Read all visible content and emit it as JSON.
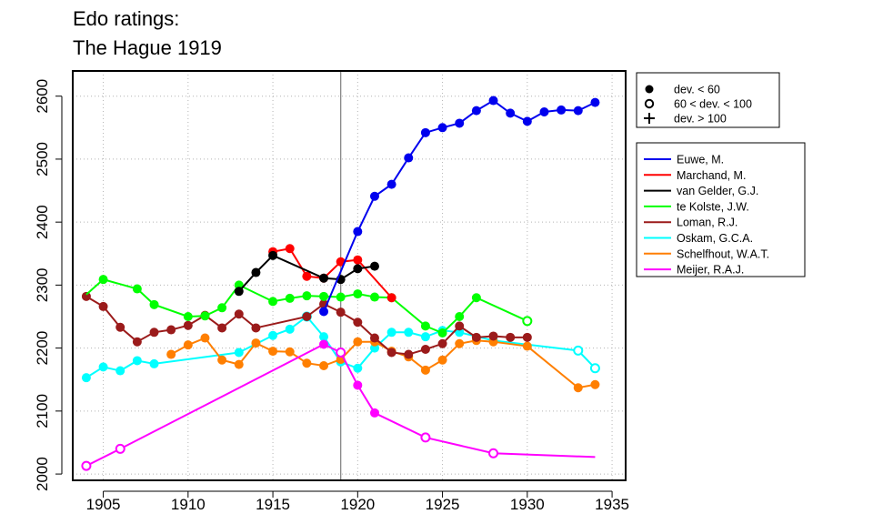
{
  "title": {
    "line1": "Edo ratings:",
    "line2": "The Hague 1919"
  },
  "chart_data": {
    "type": "line",
    "title": "Edo ratings: The Hague 1919",
    "xlabel": "",
    "ylabel": "",
    "xlim": [
      1903.2,
      1935.8
    ],
    "ylim": [
      1990,
      2640
    ],
    "xticks": [
      1905,
      1910,
      1915,
      1920,
      1925,
      1930,
      1935
    ],
    "yticks": [
      2000,
      2100,
      2200,
      2300,
      2400,
      2500,
      2600
    ],
    "grid": true,
    "reference_line_x": 1919,
    "marker_legend": [
      {
        "marker": "filled-circle",
        "label": "dev. < 60"
      },
      {
        "marker": "open-circle",
        "label": "60 < dev. < 100"
      },
      {
        "marker": "plus",
        "label": "dev. > 100"
      }
    ],
    "legend_position": "right",
    "series": [
      {
        "name": "Oskam, G.C.A.",
        "color": "#00ffff",
        "points": [
          [
            1904,
            2153,
            "f"
          ],
          [
            1905,
            2170,
            "f"
          ],
          [
            1906,
            2164,
            "f"
          ],
          [
            1907,
            2180,
            "f"
          ],
          [
            1908,
            2175,
            "f"
          ],
          [
            1913,
            2193,
            "f"
          ],
          [
            1915,
            2220,
            "f"
          ],
          [
            1916,
            2230,
            "f"
          ],
          [
            1917,
            2250,
            "o"
          ],
          [
            1918,
            2218,
            "f"
          ],
          [
            1919,
            2178,
            "f"
          ],
          [
            1920,
            2168,
            "f"
          ],
          [
            1921,
            2200,
            "f"
          ],
          [
            1922,
            2225,
            "f"
          ],
          [
            1923,
            2225,
            "f"
          ],
          [
            1924,
            2218,
            "f"
          ],
          [
            1925,
            2228,
            "f"
          ],
          [
            1926,
            2225,
            "f"
          ],
          [
            1928,
            2212,
            "f"
          ],
          [
            1933,
            2196,
            "o"
          ],
          [
            1934,
            2168,
            "o"
          ]
        ]
      },
      {
        "name": "Schelfhout, W.A.T.",
        "color": "#ff7f00",
        "points": [
          [
            1909,
            2190,
            "f"
          ],
          [
            1910,
            2205,
            "f"
          ],
          [
            1911,
            2216,
            "f"
          ],
          [
            1912,
            2181,
            "f"
          ],
          [
            1913,
            2174,
            "f"
          ],
          [
            1914,
            2208,
            "f"
          ],
          [
            1915,
            2195,
            "f"
          ],
          [
            1916,
            2194,
            "f"
          ],
          [
            1917,
            2176,
            "f"
          ],
          [
            1918,
            2172,
            "f"
          ],
          [
            1919,
            2182,
            "f"
          ],
          [
            1920,
            2210,
            "f"
          ],
          [
            1921,
            2210,
            "f"
          ],
          [
            1922,
            2195,
            "f"
          ],
          [
            1923,
            2186,
            "f"
          ],
          [
            1924,
            2165,
            "f"
          ],
          [
            1925,
            2181,
            "f"
          ],
          [
            1926,
            2207,
            "f"
          ],
          [
            1927,
            2212,
            "f"
          ],
          [
            1928,
            2210,
            "f"
          ],
          [
            1930,
            2203,
            "f"
          ],
          [
            1933,
            2137,
            "f"
          ],
          [
            1934,
            2142,
            "f"
          ]
        ]
      },
      {
        "name": "Loman, R.J.",
        "color": "#9b1b1b",
        "points": [
          [
            1904,
            2282,
            "f"
          ],
          [
            1905,
            2266,
            "f"
          ],
          [
            1906,
            2233,
            "f"
          ],
          [
            1907,
            2210,
            "f"
          ],
          [
            1908,
            2225,
            "f"
          ],
          [
            1909,
            2229,
            "f"
          ],
          [
            1910,
            2236,
            "f"
          ],
          [
            1911,
            2252,
            "f"
          ],
          [
            1912,
            2232,
            "f"
          ],
          [
            1913,
            2254,
            "f"
          ],
          [
            1914,
            2232,
            "f"
          ],
          [
            1917,
            2250,
            "f"
          ],
          [
            1918,
            2270,
            "f"
          ],
          [
            1919,
            2257,
            "f"
          ],
          [
            1920,
            2241,
            "f"
          ],
          [
            1921,
            2216,
            "f"
          ],
          [
            1922,
            2193,
            "f"
          ],
          [
            1923,
            2190,
            "f"
          ],
          [
            1924,
            2198,
            "f"
          ],
          [
            1925,
            2207,
            "f"
          ],
          [
            1926,
            2235,
            "f"
          ],
          [
            1927,
            2217,
            "f"
          ],
          [
            1928,
            2219,
            "f"
          ],
          [
            1929,
            2217,
            "f"
          ],
          [
            1930,
            2217,
            "f"
          ]
        ]
      },
      {
        "name": "Meijer, R.A.J.",
        "color": "#ff00ff",
        "points": [
          [
            1904,
            2013,
            "o"
          ],
          [
            1906,
            2040,
            "o"
          ],
          [
            1918,
            2206,
            "f"
          ],
          [
            1919,
            2193,
            "o"
          ],
          [
            1920,
            2141,
            "f"
          ],
          [
            1921,
            2097,
            "f"
          ],
          [
            1924,
            2058,
            "o"
          ],
          [
            1928,
            2033,
            "o"
          ],
          [
            1934,
            2027,
            null
          ]
        ]
      },
      {
        "name": "te Kolste, J.W.",
        "color": "#00ff00",
        "points": [
          [
            1904,
            2285,
            null
          ],
          [
            1905,
            2309,
            "f"
          ],
          [
            1907,
            2294,
            "f"
          ],
          [
            1908,
            2269,
            "f"
          ],
          [
            1910,
            2250,
            "f"
          ],
          [
            1911,
            2251,
            "f"
          ],
          [
            1912,
            2264,
            "f"
          ],
          [
            1913,
            2300,
            "f"
          ],
          [
            1915,
            2274,
            "f"
          ],
          [
            1916,
            2279,
            "f"
          ],
          [
            1917,
            2283,
            "f"
          ],
          [
            1918,
            2282,
            "f"
          ],
          [
            1919,
            2281,
            "f"
          ],
          [
            1920,
            2286,
            "f"
          ],
          [
            1921,
            2281,
            "f"
          ],
          [
            1922,
            2280,
            "f"
          ],
          [
            1924,
            2235,
            "f"
          ],
          [
            1925,
            2224,
            "f"
          ],
          [
            1926,
            2250,
            "f"
          ],
          [
            1927,
            2280,
            "f"
          ],
          [
            1930,
            2243,
            "o"
          ]
        ]
      },
      {
        "name": "Marchand, M.",
        "color": "#ff0000",
        "points": [
          [
            1915,
            2353,
            "f"
          ],
          [
            1916,
            2358,
            "f"
          ],
          [
            1917,
            2314,
            "f"
          ],
          [
            1918,
            2311,
            "f"
          ],
          [
            1919,
            2337,
            "f"
          ],
          [
            1920,
            2340,
            "f"
          ],
          [
            1922,
            2280,
            "f"
          ]
        ]
      },
      {
        "name": "van Gelder, G.J.",
        "color": "#000000",
        "points": [
          [
            1913,
            2290,
            "f"
          ],
          [
            1914,
            2320,
            "f"
          ],
          [
            1915,
            2347,
            "f"
          ],
          [
            1918,
            2311,
            "f"
          ],
          [
            1919,
            2309,
            "f"
          ],
          [
            1920,
            2326,
            "f"
          ],
          [
            1921,
            2330,
            "f"
          ]
        ]
      },
      {
        "name": "Euwe, M.",
        "color": "#0000ee",
        "points": [
          [
            1918,
            2258,
            "f"
          ],
          [
            1920,
            2385,
            "f"
          ],
          [
            1921,
            2441,
            "f"
          ],
          [
            1922,
            2460,
            "f"
          ],
          [
            1923,
            2502,
            "f"
          ],
          [
            1924,
            2542,
            "f"
          ],
          [
            1925,
            2550,
            "f"
          ],
          [
            1926,
            2557,
            "f"
          ],
          [
            1927,
            2577,
            "f"
          ],
          [
            1928,
            2593,
            "f"
          ],
          [
            1929,
            2573,
            "f"
          ],
          [
            1930,
            2560,
            "f"
          ],
          [
            1931,
            2575,
            "f"
          ],
          [
            1932,
            2578,
            "f"
          ],
          [
            1933,
            2577,
            "f"
          ],
          [
            1934,
            2590,
            "f"
          ]
        ]
      }
    ],
    "legend_order": [
      "Euwe, M.",
      "Marchand, M.",
      "van Gelder, G.J.",
      "te Kolste, J.W.",
      "Loman, R.J.",
      "Oskam, G.C.A.",
      "Schelfhout, W.A.T.",
      "Meijer, R.A.J."
    ]
  }
}
